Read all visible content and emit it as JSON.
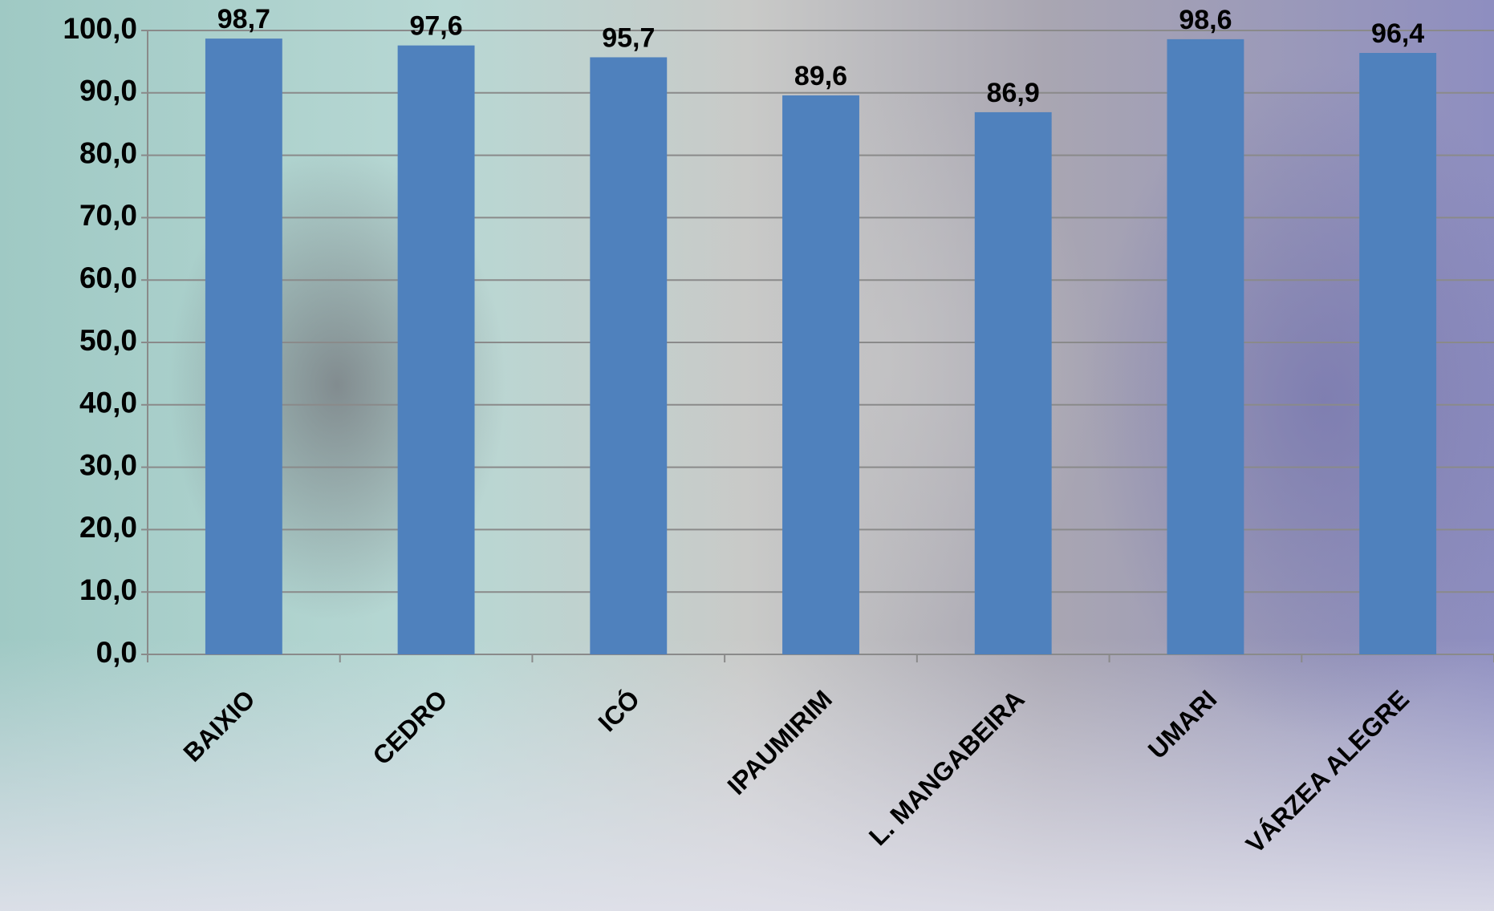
{
  "chart_data": {
    "type": "bar",
    "categories": [
      "BAIXIO",
      "CEDRO",
      "ICÓ",
      "IPAUMIRIM",
      "L. MANGABEIRA",
      "UMARI",
      "VÁRZEA ALEGRE"
    ],
    "values": [
      98.7,
      97.6,
      95.7,
      89.6,
      86.9,
      98.6,
      96.4
    ],
    "value_labels": [
      "98,7",
      "97,6",
      "95,7",
      "89,6",
      "86,9",
      "98,6",
      "96,4"
    ],
    "color": "#4f81bd",
    "ylim": [
      0,
      100
    ],
    "yticks": [
      {
        "value": 0,
        "label": "0,0"
      },
      {
        "value": 10,
        "label": "10,0"
      },
      {
        "value": 20,
        "label": "20,0"
      },
      {
        "value": 30,
        "label": "30,0"
      },
      {
        "value": 40,
        "label": "40,0"
      },
      {
        "value": 50,
        "label": "50,0"
      },
      {
        "value": 60,
        "label": "60,0"
      },
      {
        "value": 70,
        "label": "70,0"
      },
      {
        "value": 80,
        "label": "80,0"
      },
      {
        "value": 90,
        "label": "90,0"
      },
      {
        "value": 100,
        "label": "100,0"
      }
    ],
    "grid": true
  }
}
